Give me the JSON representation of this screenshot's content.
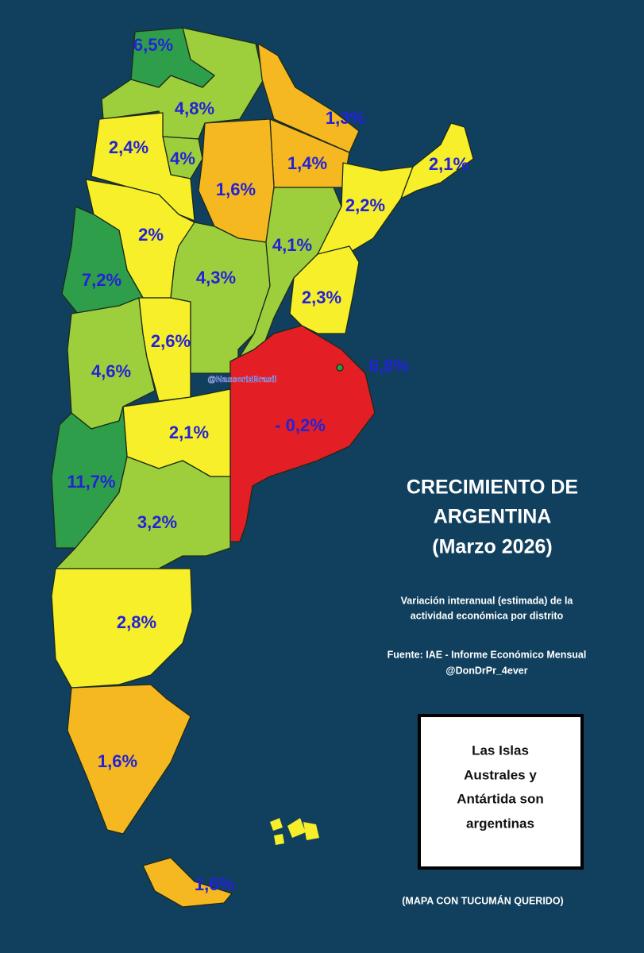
{
  "map": {
    "title": [
      "CRECIMIENTO DE",
      "ARGENTINA",
      "(Marzo 2026)"
    ],
    "subtitle": [
      "Variación interanual (estimada) de la",
      "actividad económica por distrito"
    ],
    "source": [
      "Fuente: IAE - Informe Económico Mensual",
      "@DonDrPr_4ever"
    ],
    "watermark": "@NassorIzBrasil",
    "note_box": [
      "Las Islas",
      "Australes y",
      "Antártida son",
      "argentinas"
    ],
    "footer": "(MAPA CON TUCUMÁN QUERIDO)",
    "regions": [
      {
        "label": "6,5%",
        "color": "#2f9e4a"
      },
      {
        "label": "4,8%",
        "color": "#9dcf3c"
      },
      {
        "label": "1,3%",
        "color": "#f6b820"
      },
      {
        "label": "2,4%",
        "color": "#f7ef2a"
      },
      {
        "label": "4%",
        "color": "#9dcf3c"
      },
      {
        "label": "1,6%",
        "color": "#f6b820"
      },
      {
        "label": "1,4%",
        "color": "#f6b820"
      },
      {
        "label": "2,1%",
        "color": "#f7ef2a"
      },
      {
        "label": "2,2%",
        "color": "#f7ef2a"
      },
      {
        "label": "2%",
        "color": "#f7ef2a"
      },
      {
        "label": "4,1%",
        "color": "#9dcf3c"
      },
      {
        "label": "4,3%",
        "color": "#9dcf3c"
      },
      {
        "label": "7,2%",
        "color": "#2f9e4a"
      },
      {
        "label": "2,3%",
        "color": "#f7ef2a"
      },
      {
        "label": "2,6%",
        "color": "#f7ef2a"
      },
      {
        "label": "4,6%",
        "color": "#9dcf3c"
      },
      {
        "label": "6,8%",
        "color": "#2f9e4a"
      },
      {
        "label": "- 0,2%",
        "color": "#e31e24"
      },
      {
        "label": "2,1%",
        "color": "#f7ef2a"
      },
      {
        "label": "11,7%",
        "color": "#2f9e4a"
      },
      {
        "label": "3,2%",
        "color": "#9dcf3c"
      },
      {
        "label": "2,8%",
        "color": "#f7ef2a"
      },
      {
        "label": "1,6%",
        "color": "#f6b820"
      },
      {
        "label": "1,6%",
        "color": "#f6b820"
      }
    ]
  }
}
